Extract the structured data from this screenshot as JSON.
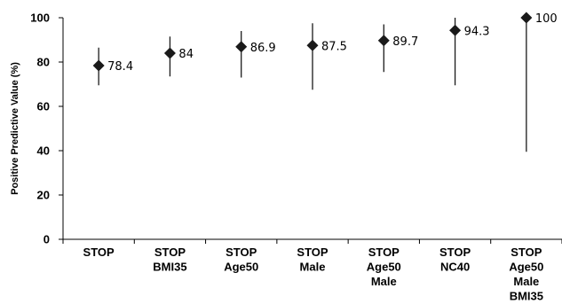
{
  "chart_data": {
    "type": "scatter",
    "title": "",
    "xlabel": "",
    "ylabel": "Positive Predictive Value (%)",
    "ylim": [
      0,
      100
    ],
    "yticks": [
      0,
      20,
      40,
      60,
      80,
      100
    ],
    "categories": [
      [
        "STOP"
      ],
      [
        "STOP",
        "BMI35"
      ],
      [
        "STOP",
        "Age50"
      ],
      [
        "STOP",
        "Male"
      ],
      [
        "STOP",
        "Age50",
        "Male"
      ],
      [
        "STOP",
        "NC40"
      ],
      [
        "STOP",
        "Age50",
        "Male",
        "BMI35"
      ]
    ],
    "values": [
      78.4,
      84,
      86.9,
      87.5,
      89.7,
      94.3,
      100
    ],
    "labels": [
      "78.4",
      "84",
      "86.9",
      "87.5",
      "89.7",
      "94.3",
      "100"
    ],
    "error_bars": [
      [
        69.5,
        86.5
      ],
      [
        73.5,
        91.5
      ],
      [
        73,
        94
      ],
      [
        67.5,
        97.5
      ],
      [
        75.5,
        97
      ],
      [
        69.5,
        100
      ],
      [
        39.5,
        100
      ]
    ],
    "marker": "diamond",
    "color": "#1a1a1a",
    "grid": false,
    "legend": "none"
  }
}
